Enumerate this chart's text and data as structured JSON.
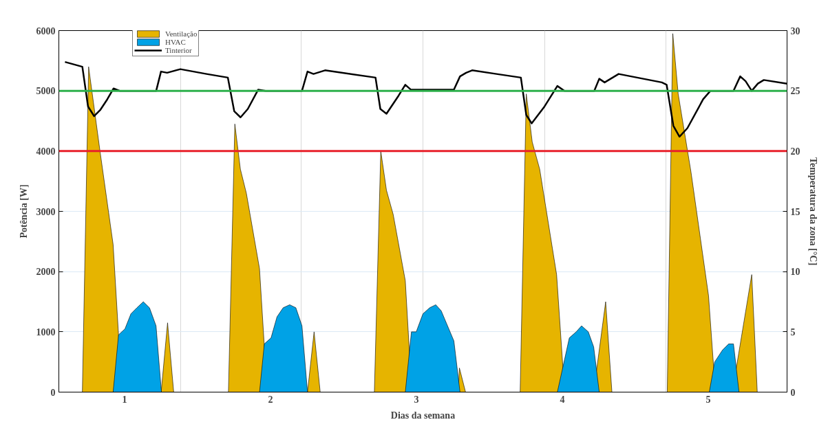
{
  "chart_data": {
    "type": "area",
    "xlabel": "Dias da semana",
    "ylabel": "Potência [W]",
    "y2label": "Temperatura da zona [°C]",
    "xlim": [
      0.55,
      5.54
    ],
    "xticks": [
      1,
      {
        "value": 1.383,
        "label": null
      },
      2,
      {
        "value": 2.21,
        "label": null
      },
      3,
      {
        "value": 3.047,
        "label": null
      },
      {
        "value": 3.88,
        "label": null
      },
      4,
      {
        "value": 4.71,
        "label": null
      },
      5
    ],
    "ylim": [
      0,
      6000
    ],
    "yticks": [
      0,
      1000,
      2000,
      3000,
      4000,
      5000,
      6000
    ],
    "y2lim": [
      0,
      30
    ],
    "y2ticks": [
      0,
      5,
      10,
      15,
      20,
      25,
      30
    ],
    "grid": true,
    "legend": "top left",
    "series": [
      {
        "name": "Ventilação",
        "color": "#e6b400",
        "x": [
          0.711,
          0.754,
          0.832,
          0.922,
          0.959,
          0.976,
          1.251,
          1.295,
          1.337,
          1.712,
          1.756,
          1.794,
          1.835,
          1.925,
          1.957,
          1.979,
          2.254,
          2.299,
          2.341,
          2.712,
          2.756,
          2.795,
          2.841,
          2.924,
          2.949,
          2.966,
          3.287,
          3.295,
          3.337,
          3.711,
          3.753,
          3.794,
          3.845,
          3.961,
          4.003,
          4.015,
          4.215,
          4.297,
          4.34,
          4.719,
          4.757,
          4.794,
          4.882,
          5.002,
          5.036,
          5.053,
          5.165,
          5.298,
          5.336
        ],
        "values": [
          0,
          5400,
          4000,
          2450,
          950,
          0,
          0,
          1150,
          0,
          0,
          4450,
          3700,
          3300,
          2050,
          800,
          0,
          0,
          1000,
          0,
          0,
          4000,
          3350,
          2950,
          1850,
          800,
          0,
          0,
          400,
          0,
          0,
          4950,
          4150,
          3700,
          1950,
          450,
          0,
          0,
          1500,
          0,
          0,
          5950,
          4950,
          3650,
          1600,
          450,
          0,
          0,
          1950,
          0
        ]
      },
      {
        "name": "HVAC",
        "color": "#00a2e6",
        "x": [
          0.922,
          0.959,
          1.003,
          1.044,
          1.085,
          1.129,
          1.171,
          1.216,
          1.253,
          1.925,
          1.958,
          2.004,
          2.045,
          2.087,
          2.132,
          2.174,
          2.216,
          2.254,
          2.924,
          2.966,
          2.999,
          3.045,
          3.091,
          3.133,
          3.17,
          3.257,
          3.299,
          3.966,
          4.048,
          4.095,
          4.132,
          4.178,
          4.215,
          4.253,
          5.007,
          5.044,
          5.098,
          5.14,
          5.173,
          5.211
        ],
        "values": [
          0,
          950,
          1050,
          1300,
          1400,
          1500,
          1400,
          1100,
          0,
          0,
          800,
          900,
          1250,
          1400,
          1450,
          1400,
          1100,
          0,
          0,
          1000,
          1000,
          1300,
          1400,
          1450,
          1350,
          850,
          0,
          0,
          900,
          1000,
          1100,
          1000,
          750,
          0,
          0,
          500,
          700,
          800,
          800,
          0
        ]
      },
      {
        "name": "Tinterior",
        "type": "line",
        "axis": "y2",
        "color": "#000000",
        "x": [
          0.592,
          0.711,
          0.75,
          0.792,
          0.833,
          0.882,
          0.925,
          0.967,
          1.217,
          1.25,
          1.292,
          1.383,
          1.562,
          1.708,
          1.752,
          1.795,
          1.845,
          1.916,
          1.966,
          2.216,
          2.254,
          2.295,
          2.374,
          2.72,
          2.753,
          2.795,
          2.878,
          2.924,
          2.962,
          3.257,
          3.299,
          3.341,
          3.382,
          3.549,
          3.716,
          3.753,
          3.79,
          3.878,
          3.966,
          4.015,
          4.219,
          4.253,
          4.29,
          4.386,
          4.682,
          4.715,
          4.761,
          4.803,
          4.857,
          4.965,
          5.015,
          5.173,
          5.219,
          5.256,
          5.298,
          5.34,
          5.381,
          5.54
        ],
        "values": [
          27.4,
          27.0,
          23.7,
          22.9,
          23.4,
          24.3,
          25.2,
          25.0,
          25.0,
          26.6,
          26.5,
          26.8,
          26.4,
          26.1,
          23.3,
          22.8,
          23.5,
          25.1,
          25.0,
          25.0,
          26.6,
          26.4,
          26.7,
          26.1,
          23.5,
          23.1,
          24.6,
          25.5,
          25.1,
          25.1,
          26.2,
          26.5,
          26.7,
          26.4,
          26.1,
          23.0,
          22.3,
          23.7,
          25.4,
          25.0,
          25.0,
          26.0,
          25.7,
          26.4,
          25.7,
          25.5,
          22.1,
          21.2,
          21.9,
          24.3,
          25.0,
          25.0,
          26.2,
          25.8,
          25.0,
          25.6,
          25.9,
          25.6
        ]
      }
    ],
    "ref_lines": [
      {
        "axis": "y2",
        "value": 25,
        "color": "#2db04b"
      },
      {
        "axis": "y2",
        "value": 20,
        "color": "#e8202a"
      }
    ]
  }
}
